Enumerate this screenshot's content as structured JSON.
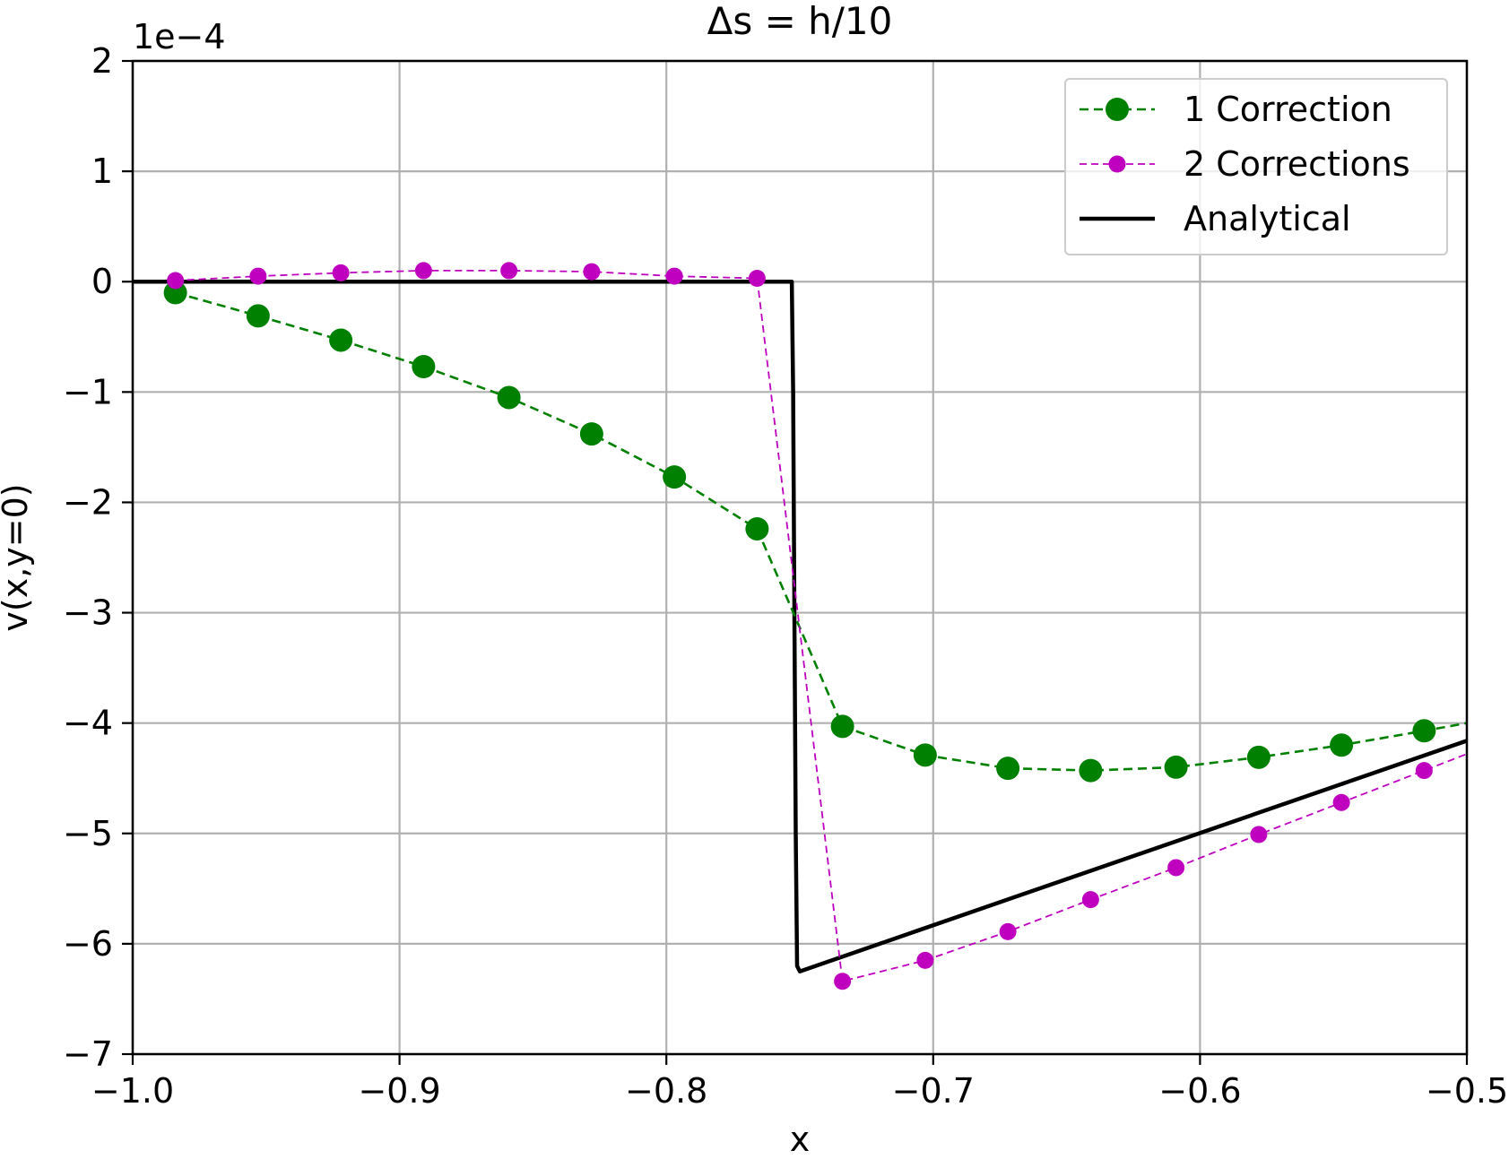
{
  "chart_data": {
    "type": "line",
    "title": "Δs = h/10",
    "xlabel": "x",
    "ylabel": "v(x,y=0)",
    "y_scale_label": "1e−4",
    "y_scale": 0.0001,
    "xlim": [
      -1.0,
      -0.5
    ],
    "ylim": [
      -7,
      2
    ],
    "x_ticks": [
      -1.0,
      -0.9,
      -0.8,
      -0.7,
      -0.6,
      -0.5
    ],
    "x_tick_labels": [
      "−1.0",
      "−0.9",
      "−0.8",
      "−0.7",
      "−0.6",
      "−0.5"
    ],
    "y_ticks": [
      2,
      1,
      0,
      -1,
      -2,
      -3,
      -4,
      -5,
      -6,
      -7
    ],
    "y_tick_labels": [
      "2",
      "1",
      "0",
      "−1",
      "−2",
      "−3",
      "−4",
      "−5",
      "−6",
      "−7"
    ],
    "grid": true,
    "legend_position": "upper right",
    "series": [
      {
        "name": "1 Correction",
        "style": "dashed-markers-large",
        "color": "#008000",
        "x": [
          -0.984,
          -0.953,
          -0.922,
          -0.891,
          -0.859,
          -0.828,
          -0.797,
          -0.766,
          -0.734,
          -0.703,
          -0.672,
          -0.641,
          -0.609,
          -0.578,
          -0.547,
          -0.516,
          -0.5
        ],
        "y": [
          -0.1,
          -0.31,
          -0.53,
          -0.77,
          -1.05,
          -1.38,
          -1.77,
          -2.24,
          -4.03,
          -4.29,
          -4.41,
          -4.43,
          -4.4,
          -4.31,
          -4.2,
          -4.07,
          -4.0
        ]
      },
      {
        "name": "2 Corrections",
        "style": "dashed-markers-small",
        "color": "#bf00bf",
        "x": [
          -0.984,
          -0.953,
          -0.922,
          -0.891,
          -0.859,
          -0.828,
          -0.797,
          -0.766,
          -0.734,
          -0.703,
          -0.672,
          -0.641,
          -0.609,
          -0.578,
          -0.547,
          -0.516,
          -0.5
        ],
        "y": [
          0.01,
          0.05,
          0.08,
          0.1,
          0.1,
          0.09,
          0.05,
          0.03,
          -6.34,
          -6.15,
          -5.89,
          -5.6,
          -5.31,
          -5.01,
          -4.72,
          -4.43,
          -4.28
        ]
      },
      {
        "name": "Analytical",
        "style": "solid",
        "color": "#000000",
        "x": [
          -1.0,
          -0.753,
          -0.7525,
          -0.752,
          -0.7515,
          -0.751,
          -0.75,
          -0.5
        ],
        "y": [
          0.0,
          0.0,
          -1.0,
          -3.0,
          -5.0,
          -6.2,
          -6.25,
          -4.16
        ]
      }
    ]
  }
}
